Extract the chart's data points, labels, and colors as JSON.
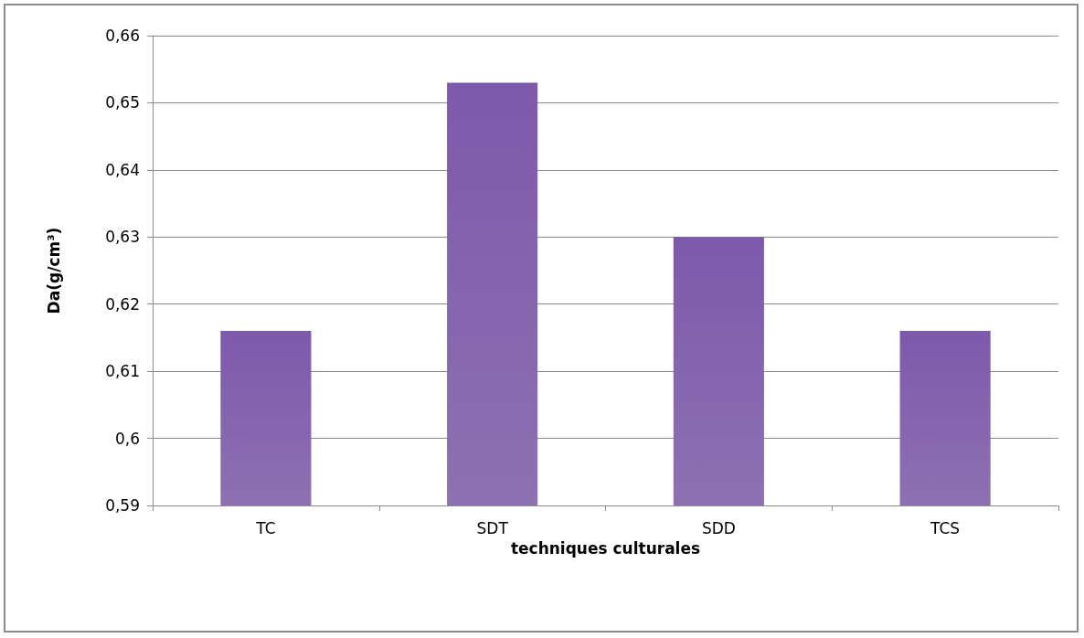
{
  "chart_data": {
    "type": "bar",
    "categories": [
      "TC",
      "SDT",
      "SDD",
      "TCS"
    ],
    "values": [
      0.616,
      0.653,
      0.63,
      0.616
    ],
    "color": "#7453a0",
    "xlabel": "techniques culturales",
    "ylabel": "Da(g/cm³)",
    "ylim": [
      0.59,
      0.66
    ],
    "yticks": [
      {
        "value": 0.59,
        "label": "0,59"
      },
      {
        "value": 0.6,
        "label": "0,6"
      },
      {
        "value": 0.61,
        "label": "0,61"
      },
      {
        "value": 0.62,
        "label": "0,62"
      },
      {
        "value": 0.63,
        "label": "0,63"
      },
      {
        "value": 0.64,
        "label": "0,64"
      },
      {
        "value": 0.65,
        "label": "0,65"
      },
      {
        "value": 0.66,
        "label": "0,66"
      }
    ],
    "grid": "y"
  }
}
